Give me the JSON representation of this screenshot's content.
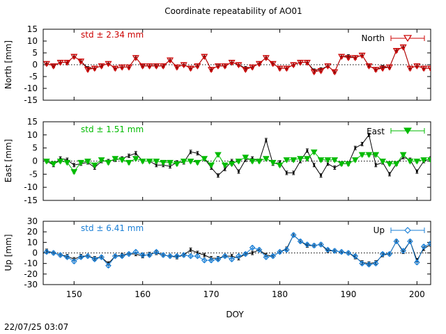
{
  "title": "Coordinate repeatability of AO01",
  "timestamp": "22/07/25 03:07",
  "chart_data": [
    {
      "type": "line",
      "ylabel": "North [mm]",
      "ylim": [
        -15,
        15
      ],
      "yticks": [
        15,
        10,
        5,
        0,
        -5,
        -10,
        -15
      ],
      "std_label": "std ± 2.34 mm",
      "legend": "North",
      "legend_position": "top-right",
      "color": "#cc0000",
      "marker": "triangle-down-open",
      "x": [
        146,
        147,
        148,
        149,
        150,
        151,
        152,
        153,
        154,
        155,
        156,
        157,
        158,
        159,
        160,
        161,
        162,
        163,
        164,
        165,
        166,
        167,
        168,
        169,
        170,
        171,
        172,
        173,
        174,
        175,
        176,
        177,
        178,
        179,
        180,
        181,
        182,
        183,
        184,
        185,
        186,
        187,
        188,
        189,
        190,
        191,
        192,
        193,
        194,
        195,
        196,
        197,
        198,
        199,
        200,
        201,
        202
      ],
      "series": [
        {
          "values": [
            0.5,
            -0.5,
            1,
            1,
            3.5,
            1.5,
            -1.5,
            -1.5,
            -0.5,
            0.5,
            -1.5,
            -1,
            -1,
            3,
            -0.5,
            -0.5,
            -0.5,
            -0.5,
            2,
            -1,
            0,
            -1.5,
            -0.5,
            3.5,
            -2,
            -0.5,
            -0.5,
            1,
            0,
            -1.5,
            -1,
            0.5,
            3,
            0.5,
            -1.5,
            -1.5,
            0,
            1,
            1,
            -2.5,
            -2,
            -0.5,
            -3,
            3.5,
            3.5,
            3,
            4,
            -0.5,
            -2,
            -1,
            -1,
            6,
            7.5,
            -1.5,
            -0.5,
            -1.5,
            -1.5
          ]
        },
        {
          "values": [
            0.5,
            -0.5,
            1,
            1,
            3.5,
            1.5,
            -2,
            -1.5,
            -0.5,
            0.5,
            -1.5,
            -1,
            -1,
            3,
            -0.5,
            -0.5,
            -0.5,
            -0.5,
            2,
            -1,
            0,
            -1.5,
            -0.5,
            3.5,
            -2,
            -0.5,
            -0.5,
            1,
            0,
            -2,
            -1,
            0.5,
            3,
            0.5,
            -1.5,
            -1.5,
            0,
            1,
            1,
            -3,
            -2.5,
            -0.5,
            -3,
            3.5,
            3,
            3,
            4,
            -0.5,
            -2,
            -1.5,
            -1,
            6,
            7.5,
            -1.5,
            -0.5,
            -1.5,
            -1.5
          ]
        }
      ]
    },
    {
      "type": "line",
      "ylabel": "East [mm]",
      "ylim": [
        -15,
        15
      ],
      "yticks": [
        15,
        10,
        5,
        0,
        -5,
        -10,
        -15
      ],
      "std_label": "std ± 1.51 mm",
      "legend": "East",
      "legend_position": "top-right",
      "color": "#00bb00",
      "marker": "triangle-down-filled",
      "x": [
        146,
        147,
        148,
        149,
        150,
        151,
        152,
        153,
        154,
        155,
        156,
        157,
        158,
        159,
        160,
        161,
        162,
        163,
        164,
        165,
        166,
        167,
        168,
        169,
        170,
        171,
        172,
        173,
        174,
        175,
        176,
        177,
        178,
        179,
        180,
        181,
        182,
        183,
        184,
        185,
        186,
        187,
        188,
        189,
        190,
        191,
        192,
        193,
        194,
        195,
        196,
        197,
        198,
        199,
        200,
        201,
        202
      ],
      "series": [
        {
          "values": [
            0,
            -1.5,
            1,
            0.5,
            -1.5,
            -1,
            -0.5,
            -2.5,
            0,
            0,
            0.5,
            1,
            2,
            3,
            0,
            0,
            -1.5,
            -1.5,
            -2,
            -0.5,
            -0.5,
            3.5,
            3,
            1,
            -2.5,
            -5.5,
            -3,
            0,
            -4,
            0.5,
            1,
            0,
            8,
            -1,
            -0.5,
            -4.5,
            -4.5,
            0,
            4,
            -1.5,
            -5.5,
            -1,
            -2.5,
            -1,
            -1,
            5,
            6.5,
            10,
            -1.5,
            -0.5,
            -5,
            -1,
            1.5,
            0.5,
            -4,
            0,
            1
          ]
        },
        {
          "values": [
            0,
            -1,
            0,
            -0.5,
            -4,
            -0.5,
            0,
            -1.5,
            0.5,
            -0.5,
            1,
            0.5,
            -0.5,
            1,
            0,
            0,
            0,
            -0.5,
            -0.5,
            -1,
            0,
            0,
            -0.5,
            1,
            -1.5,
            2.5,
            -1.5,
            -1,
            0,
            1.5,
            0,
            0,
            1,
            -0.5,
            -1.5,
            0.5,
            0.5,
            1,
            1,
            3.5,
            0.5,
            0.5,
            0.5,
            -1,
            -1,
            0.5,
            2.5,
            2.5,
            2.5,
            0,
            -1,
            -1,
            2.5,
            0,
            0,
            0.5,
            0.5
          ]
        }
      ]
    },
    {
      "type": "line",
      "ylabel": "Up [mm]",
      "ylim": [
        -30,
        30
      ],
      "yticks": [
        30,
        20,
        10,
        0,
        -10,
        -20,
        -30
      ],
      "std_label": "std ± 6.41 mm",
      "legend": "Up",
      "legend_position": "top-right",
      "color": "#1a7fd6",
      "marker": "diamond-open",
      "x": [
        146,
        147,
        148,
        149,
        150,
        151,
        152,
        153,
        154,
        155,
        156,
        157,
        158,
        159,
        160,
        161,
        162,
        163,
        164,
        165,
        166,
        167,
        168,
        169,
        170,
        171,
        172,
        173,
        174,
        175,
        176,
        177,
        178,
        179,
        180,
        181,
        182,
        183,
        184,
        185,
        186,
        187,
        188,
        189,
        190,
        191,
        192,
        193,
        194,
        195,
        196,
        197,
        198,
        199,
        200,
        201,
        202
      ],
      "series": [
        {
          "values": [
            2,
            0,
            -2,
            -3,
            -6,
            -3,
            -3,
            -5,
            -4,
            -10,
            -3,
            -2,
            -1,
            -1,
            -3,
            -1,
            0,
            -2,
            -3,
            -4,
            -2,
            3,
            0,
            -2,
            -5,
            -5,
            -3,
            -3,
            -5,
            -1,
            0,
            3,
            -2,
            -3,
            1,
            4,
            17,
            11,
            7,
            7,
            8,
            2,
            2,
            1,
            0,
            -4,
            -9,
            -10,
            -9,
            -2,
            -1,
            11,
            1,
            11,
            -7,
            4,
            8
          ]
        },
        {
          "values": [
            1,
            0,
            -2,
            -4,
            -8,
            -4,
            -3,
            -6,
            -4,
            -12,
            -3,
            -3,
            -1,
            1,
            -2,
            -2,
            1,
            -2,
            -3,
            -3,
            -2,
            -3,
            -3,
            -7,
            -7,
            -6,
            -3,
            -6,
            -3,
            -1,
            5,
            3,
            -4,
            -3,
            1,
            3,
            17,
            11,
            8,
            7,
            8,
            3,
            2,
            1,
            0,
            -3,
            -10,
            -11,
            -10,
            -1,
            -1,
            11,
            2,
            11,
            -9,
            6,
            9
          ]
        }
      ]
    }
  ],
  "x_axis": {
    "label": "DOY",
    "range": [
      145.5,
      202
    ],
    "ticks": [
      "150",
      "160",
      "170",
      "180",
      "190",
      "200"
    ]
  }
}
